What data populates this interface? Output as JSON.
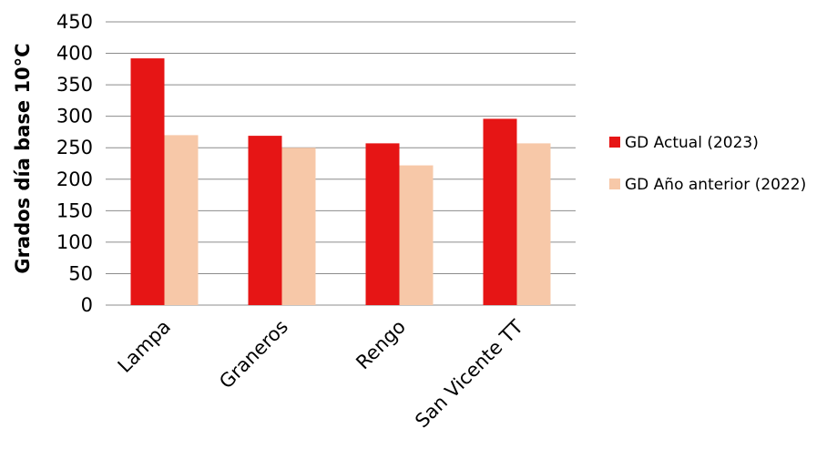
{
  "chart_data": {
    "type": "bar",
    "ylabel": "Grados día base 10°C",
    "xlabel": "",
    "ylim": [
      0,
      450
    ],
    "yticks": [
      0,
      50,
      100,
      150,
      200,
      250,
      300,
      350,
      400,
      450
    ],
    "grid": true,
    "legend_position": "right",
    "categories": [
      "Lampa",
      "Graneros",
      "Rengo",
      "San Vicente TT"
    ],
    "series": [
      {
        "name": "GD Actual (2023)",
        "color": "#e61515",
        "values": [
          392,
          269,
          257,
          296
        ]
      },
      {
        "name": "GD Año anterior (2022)",
        "color": "#f7c8a8",
        "values": [
          270,
          250,
          222,
          257
        ]
      }
    ]
  }
}
